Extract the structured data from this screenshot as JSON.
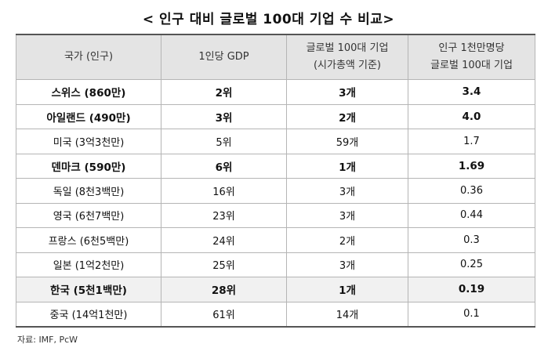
{
  "title": "< 인구 대비 글로벌 100대 기업 수 비교>",
  "headers": {
    "country": "국가 (인구)",
    "gdp": "1인당 GDP",
    "global100_line1": "글로벌 100대 기업",
    "global100_line2": "(시가총액 기준)",
    "per10m_line1": "인구 1천만명당",
    "per10m_line2": "글로벌 100대 기업"
  },
  "rows": [
    {
      "country": "스위스 (860만)",
      "gdp_rank": "2위",
      "global100": "3개",
      "per10m": "3.4",
      "bold": true
    },
    {
      "country": "아일랜드 (490만)",
      "gdp_rank": "3위",
      "global100": "2개",
      "per10m": "4.0",
      "bold": true
    },
    {
      "country": "미국 (3억3천만)",
      "gdp_rank": "5위",
      "global100": "59개",
      "per10m": "1.7",
      "bold": false
    },
    {
      "country": "덴마크 (590만)",
      "gdp_rank": "6위",
      "global100": "1개",
      "per10m": "1.69",
      "bold": true
    },
    {
      "country": "독일 (8천3백만)",
      "gdp_rank": "16위",
      "global100": "3개",
      "per10m": "0.36",
      "bold": false
    },
    {
      "country": "영국 (6천7백만)",
      "gdp_rank": "23위",
      "global100": "3개",
      "per10m": "0.44",
      "bold": false
    },
    {
      "country": "프랑스 (6천5백만)",
      "gdp_rank": "24위",
      "global100": "2개",
      "per10m": "0.3",
      "bold": false
    },
    {
      "country": "일본 (1억2천만)",
      "gdp_rank": "25위",
      "global100": "3개",
      "per10m": "0.25",
      "bold": false
    },
    {
      "country": "한국 (5천1백만)",
      "gdp_rank": "28위",
      "global100": "1개",
      "per10m": "0.19",
      "bold": true,
      "highlight": true
    },
    {
      "country": "중국 (14억1천만)",
      "gdp_rank": "61위",
      "global100": "14개",
      "per10m": "0.1",
      "bold": false
    }
  ],
  "source": "자료: IMF, PcW"
}
